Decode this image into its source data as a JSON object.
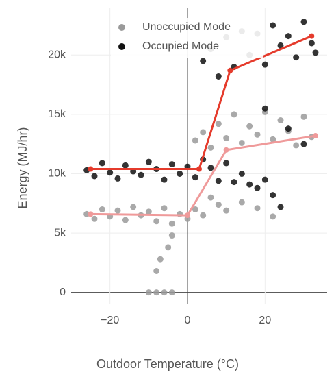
{
  "chart_data": {
    "type": "scatter",
    "x_label": "Outdoor Temperature (°C)",
    "y_label": "Energy (MJ/hr)",
    "xlim": [
      -30,
      36
    ],
    "ylim": [
      -1000,
      24000
    ],
    "xticks": [
      {
        "value": -20,
        "label": "−20"
      },
      0,
      20
    ],
    "yticks": [
      0,
      {
        "value": 5000,
        "label": "5k"
      },
      {
        "value": 10000,
        "label": "10k"
      },
      {
        "value": 15000,
        "label": "15k"
      },
      {
        "value": 20000,
        "label": "20k"
      }
    ],
    "grid": true,
    "legend": "top",
    "series": [
      {
        "name": "Unoccupied Mode",
        "color": "#9a9a9a",
        "x": [
          -26,
          -24,
          -22,
          -20,
          -18,
          -16,
          -14,
          -12,
          -10,
          -8,
          -6,
          -4,
          -2,
          0,
          2,
          4,
          6,
          8,
          10,
          14,
          18,
          22,
          -10,
          -8,
          -6,
          -4,
          -7,
          -5,
          -4,
          -8,
          2,
          4,
          6,
          8,
          10,
          12,
          14,
          16,
          18,
          20,
          22,
          24,
          26,
          28,
          30,
          32
        ],
        "values": [
          6600,
          6200,
          7000,
          6400,
          6900,
          6100,
          7200,
          6500,
          6800,
          6000,
          7100,
          5800,
          6600,
          6200,
          7000,
          6500,
          8000,
          7400,
          6900,
          7600,
          7100,
          6400,
          0,
          0,
          0,
          0,
          2800,
          3800,
          4800,
          1800,
          12800,
          13500,
          12200,
          14200,
          13000,
          15000,
          12600,
          14000,
          13300,
          15200,
          12900,
          14500,
          13600,
          12400,
          14800,
          13100
        ]
      },
      {
        "name": "Occupied Mode",
        "color": "#111111",
        "x": [
          -26,
          -24,
          -22,
          -20,
          -18,
          -16,
          -14,
          -12,
          -10,
          -8,
          -6,
          -4,
          -2,
          0,
          2,
          4,
          6,
          8,
          10,
          12,
          14,
          16,
          18,
          20,
          22,
          24,
          4,
          6,
          8,
          10,
          12,
          14,
          16,
          18,
          20,
          22,
          24,
          26,
          28,
          30,
          32,
          33,
          20,
          26,
          30
        ],
        "values": [
          10300,
          9800,
          10900,
          10100,
          9600,
          10700,
          10200,
          9900,
          11000,
          10400,
          9500,
          10800,
          10000,
          10600,
          9700,
          11200,
          10500,
          9400,
          10900,
          9300,
          10000,
          9100,
          8800,
          9500,
          8200,
          7200,
          19500,
          20500,
          18200,
          21500,
          19000,
          22000,
          20000,
          21800,
          19200,
          22500,
          20800,
          21600,
          19800,
          22800,
          21000,
          20200,
          15500,
          13800,
          12500
        ]
      }
    ],
    "lines": [
      {
        "color": "#ef9a9a",
        "x": [
          -25,
          0,
          10,
          33
        ],
        "values": [
          6600,
          6500,
          12000,
          13200
        ]
      },
      {
        "color": "#e53b2c",
        "x": [
          -25,
          3,
          11,
          32
        ],
        "values": [
          10400,
          10400,
          18700,
          21600
        ]
      }
    ]
  }
}
